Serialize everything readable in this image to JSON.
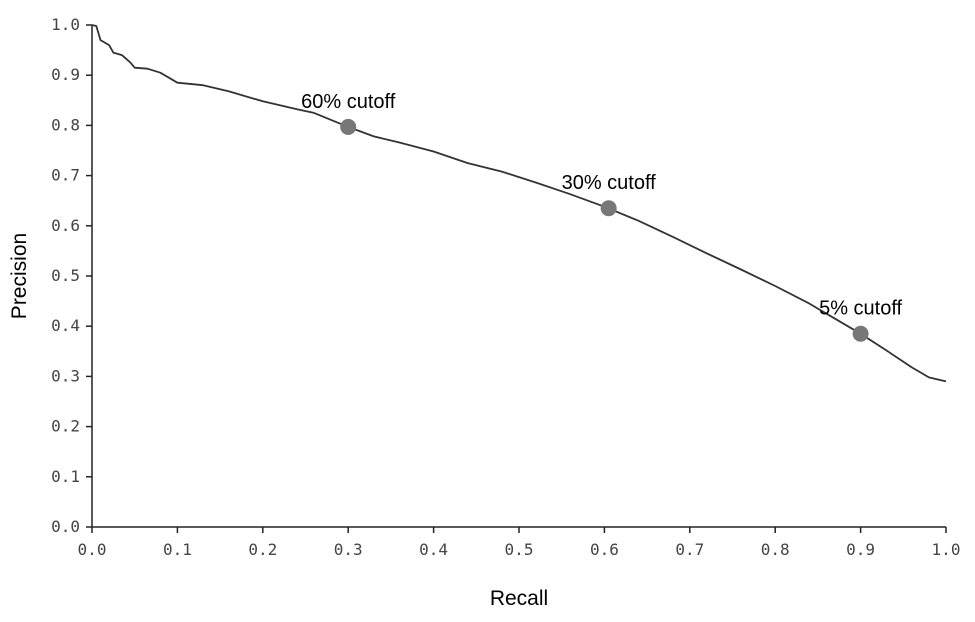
{
  "chart_data": {
    "type": "line",
    "title": "",
    "xlabel": "Recall",
    "ylabel": "Precision",
    "xlim": [
      0.0,
      1.0
    ],
    "ylim": [
      0.0,
      1.0
    ],
    "x_ticks": [
      0.0,
      0.1,
      0.2,
      0.3,
      0.4,
      0.5,
      0.6,
      0.7,
      0.8,
      0.9,
      1.0
    ],
    "y_ticks": [
      0.0,
      0.1,
      0.2,
      0.3,
      0.4,
      0.5,
      0.6,
      0.7,
      0.8,
      0.9,
      1.0
    ],
    "x_tick_labels": [
      "0.0",
      "0.1",
      "0.2",
      "0.3",
      "0.4",
      "0.5",
      "0.6",
      "0.7",
      "0.8",
      "0.9",
      "1.0"
    ],
    "y_tick_labels": [
      "0.0",
      "0.1",
      "0.2",
      "0.3",
      "0.4",
      "0.5",
      "0.6",
      "0.7",
      "0.8",
      "0.9",
      "1.0"
    ],
    "grid": false,
    "colors": {
      "line": "#333333",
      "marker": "#777777"
    },
    "series": [
      {
        "name": "precision-recall",
        "x": [
          0.0,
          0.005,
          0.01,
          0.02,
          0.025,
          0.035,
          0.045,
          0.05,
          0.065,
          0.08,
          0.1,
          0.13,
          0.16,
          0.2,
          0.24,
          0.26,
          0.3,
          0.33,
          0.36,
          0.4,
          0.44,
          0.48,
          0.52,
          0.56,
          0.6,
          0.64,
          0.68,
          0.72,
          0.76,
          0.8,
          0.84,
          0.87,
          0.9,
          0.93,
          0.96,
          0.98,
          1.0
        ],
        "y": [
          1.0,
          0.998,
          0.97,
          0.96,
          0.945,
          0.94,
          0.925,
          0.915,
          0.913,
          0.905,
          0.885,
          0.88,
          0.868,
          0.848,
          0.832,
          0.825,
          0.797,
          0.778,
          0.766,
          0.748,
          0.725,
          0.708,
          0.686,
          0.663,
          0.638,
          0.61,
          0.578,
          0.545,
          0.513,
          0.48,
          0.445,
          0.415,
          0.385,
          0.352,
          0.318,
          0.298,
          0.29
        ]
      }
    ],
    "annotations": [
      {
        "label": "60% cutoff",
        "x": 0.3,
        "y": 0.797
      },
      {
        "label": "30% cutoff",
        "x": 0.605,
        "y": 0.635
      },
      {
        "label": "5% cutoff",
        "x": 0.9,
        "y": 0.385
      }
    ]
  }
}
